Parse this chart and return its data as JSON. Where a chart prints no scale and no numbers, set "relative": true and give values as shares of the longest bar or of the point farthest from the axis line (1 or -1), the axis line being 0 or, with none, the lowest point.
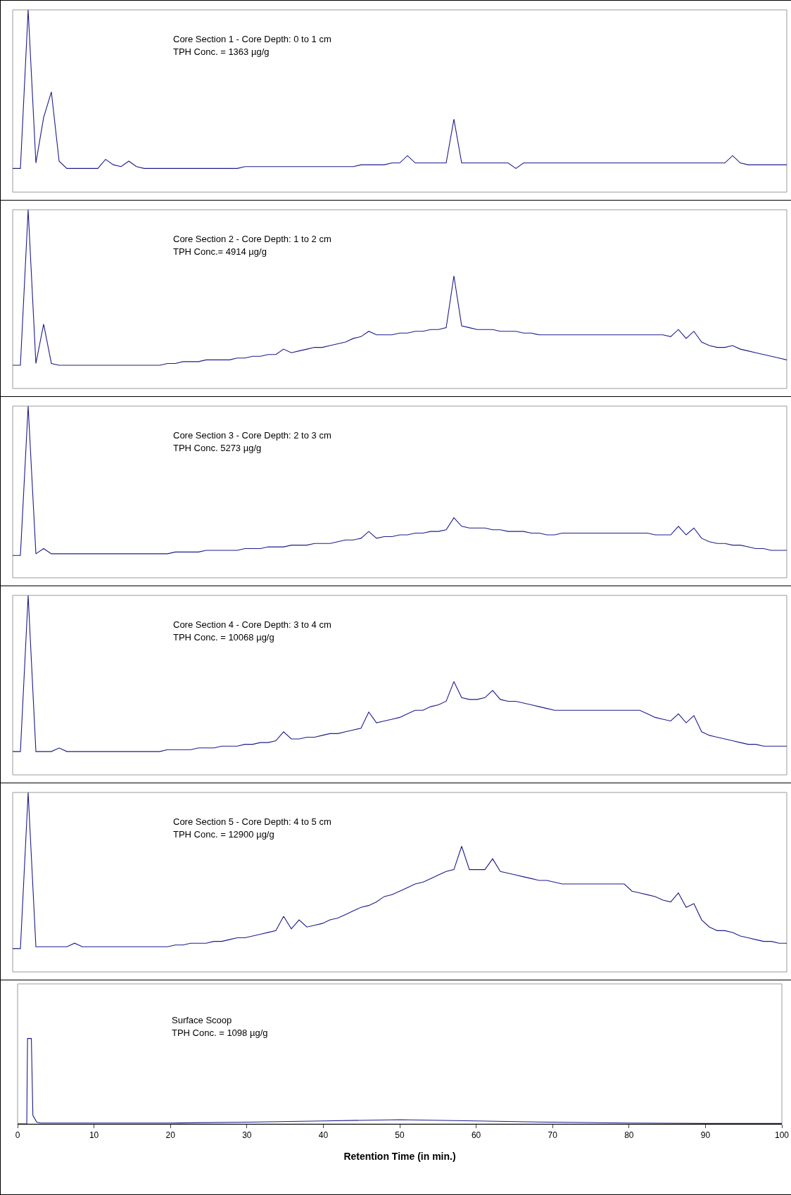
{
  "chart_data": [
    {
      "type": "line",
      "relative": true,
      "color": "#1c1c8c",
      "tick_labels": false,
      "annotations": [
        "Core Section 1 - Core Depth: 0 to 1 cm",
        "TPH Conc. = 1363 µg/g"
      ],
      "categories": [
        null,
        null,
        null,
        null,
        null,
        null,
        null,
        null,
        null,
        null,
        null,
        null,
        null,
        null,
        null,
        null,
        null,
        null,
        null,
        null,
        null,
        null,
        null,
        null,
        null,
        null,
        null,
        null,
        null,
        null,
        null,
        null,
        null,
        null,
        null,
        null,
        null,
        null,
        null,
        null,
        null,
        null,
        null,
        null,
        null,
        null,
        null,
        null,
        null,
        null,
        null,
        null,
        null,
        null,
        null,
        null,
        null,
        null,
        null,
        null,
        null,
        null,
        null,
        null,
        null,
        null,
        null,
        null,
        null,
        null,
        null,
        null,
        null,
        null,
        null,
        null,
        null,
        null,
        null,
        null,
        null,
        null,
        null,
        null,
        null,
        null,
        null,
        null,
        null,
        null,
        null,
        null,
        null,
        null,
        null,
        null,
        null,
        null,
        null,
        null,
        null
      ],
      "values": [
        0.13,
        0.13,
        1,
        0.16,
        0.41,
        0.55,
        0.17,
        0.13,
        0.13,
        0.13,
        0.13,
        0.13,
        0.18,
        0.15,
        0.14,
        0.17,
        0.14,
        0.13,
        0.13,
        0.13,
        0.13,
        0.13,
        0.13,
        0.13,
        0.13,
        0.13,
        0.13,
        0.13,
        0.13,
        0.13,
        0.14,
        0.14,
        0.14,
        0.14,
        0.14,
        0.14,
        0.14,
        0.14,
        0.14,
        0.14,
        0.14,
        0.14,
        0.14,
        0.14,
        0.14,
        0.15,
        0.15,
        0.15,
        0.15,
        0.16,
        0.16,
        0.2,
        0.16,
        0.16,
        0.16,
        0.16,
        0.16,
        0.4,
        0.16,
        0.16,
        0.16,
        0.16,
        0.16,
        0.16,
        0.16,
        0.13,
        0.16,
        0.16,
        0.16,
        0.16,
        0.16,
        0.16,
        0.16,
        0.16,
        0.16,
        0.16,
        0.16,
        0.16,
        0.16,
        0.16,
        0.16,
        0.16,
        0.16,
        0.16,
        0.16,
        0.16,
        0.16,
        0.16,
        0.16,
        0.16,
        0.16,
        0.16,
        0.16,
        0.2,
        0.16,
        0.15,
        0.15,
        0.15,
        0.15,
        0.15,
        0.15
      ]
    },
    {
      "type": "line",
      "relative": true,
      "color": "#1c1c8c",
      "tick_labels": false,
      "annotations": [
        "Core Section 2 - Core Depth: 1 to 2 cm",
        "TPH Conc.= 4914 µg/g"
      ],
      "categories": [
        null,
        null,
        null,
        null,
        null,
        null,
        null,
        null,
        null,
        null,
        null,
        null,
        null,
        null,
        null,
        null,
        null,
        null,
        null,
        null,
        null,
        null,
        null,
        null,
        null,
        null,
        null,
        null,
        null,
        null,
        null,
        null,
        null,
        null,
        null,
        null,
        null,
        null,
        null,
        null,
        null,
        null,
        null,
        null,
        null,
        null,
        null,
        null,
        null,
        null,
        null,
        null,
        null,
        null,
        null,
        null,
        null,
        null,
        null,
        null,
        null,
        null,
        null,
        null,
        null,
        null,
        null,
        null,
        null,
        null,
        null,
        null,
        null,
        null,
        null,
        null,
        null,
        null,
        null,
        null,
        null,
        null,
        null,
        null,
        null,
        null,
        null,
        null,
        null,
        null,
        null,
        null,
        null,
        null,
        null,
        null,
        null,
        null,
        null,
        null,
        null
      ],
      "values": [
        0.13,
        0.13,
        1,
        0.14,
        0.36,
        0.14,
        0.13,
        0.13,
        0.13,
        0.13,
        0.13,
        0.13,
        0.13,
        0.13,
        0.13,
        0.13,
        0.13,
        0.13,
        0.13,
        0.13,
        0.14,
        0.14,
        0.15,
        0.15,
        0.15,
        0.16,
        0.16,
        0.16,
        0.16,
        0.17,
        0.17,
        0.18,
        0.18,
        0.19,
        0.19,
        0.22,
        0.2,
        0.21,
        0.22,
        0.23,
        0.23,
        0.24,
        0.25,
        0.26,
        0.28,
        0.29,
        0.32,
        0.3,
        0.3,
        0.3,
        0.31,
        0.31,
        0.32,
        0.32,
        0.33,
        0.33,
        0.34,
        0.63,
        0.35,
        0.34,
        0.33,
        0.33,
        0.33,
        0.32,
        0.32,
        0.32,
        0.31,
        0.31,
        0.3,
        0.3,
        0.3,
        0.3,
        0.3,
        0.3,
        0.3,
        0.3,
        0.3,
        0.3,
        0.3,
        0.3,
        0.3,
        0.3,
        0.3,
        0.3,
        0.3,
        0.29,
        0.33,
        0.28,
        0.32,
        0.26,
        0.24,
        0.23,
        0.23,
        0.24,
        0.22,
        0.21,
        0.2,
        0.19,
        0.18,
        0.17,
        0.16
      ]
    },
    {
      "type": "line",
      "relative": true,
      "color": "#1c1c8c",
      "tick_labels": false,
      "annotations": [
        "Core Section 3 - Core Depth: 2 to 3 cm",
        "TPH Conc. 5273 µg/g"
      ],
      "categories": [
        null,
        null,
        null,
        null,
        null,
        null,
        null,
        null,
        null,
        null,
        null,
        null,
        null,
        null,
        null,
        null,
        null,
        null,
        null,
        null,
        null,
        null,
        null,
        null,
        null,
        null,
        null,
        null,
        null,
        null,
        null,
        null,
        null,
        null,
        null,
        null,
        null,
        null,
        null,
        null,
        null,
        null,
        null,
        null,
        null,
        null,
        null,
        null,
        null,
        null,
        null,
        null,
        null,
        null,
        null,
        null,
        null,
        null,
        null,
        null,
        null,
        null,
        null,
        null,
        null,
        null,
        null,
        null,
        null,
        null,
        null,
        null,
        null,
        null,
        null,
        null,
        null,
        null,
        null,
        null,
        null,
        null,
        null,
        null,
        null,
        null,
        null,
        null,
        null,
        null,
        null,
        null,
        null,
        null,
        null,
        null,
        null,
        null,
        null,
        null,
        null
      ],
      "values": [
        0.13,
        0.13,
        1,
        0.14,
        0.17,
        0.14,
        0.14,
        0.14,
        0.14,
        0.14,
        0.14,
        0.14,
        0.14,
        0.14,
        0.14,
        0.14,
        0.14,
        0.14,
        0.14,
        0.14,
        0.14,
        0.15,
        0.15,
        0.15,
        0.15,
        0.16,
        0.16,
        0.16,
        0.16,
        0.16,
        0.17,
        0.17,
        0.17,
        0.18,
        0.18,
        0.18,
        0.19,
        0.19,
        0.19,
        0.2,
        0.2,
        0.2,
        0.21,
        0.22,
        0.22,
        0.23,
        0.27,
        0.23,
        0.24,
        0.24,
        0.25,
        0.25,
        0.26,
        0.26,
        0.27,
        0.27,
        0.28,
        0.35,
        0.3,
        0.29,
        0.29,
        0.29,
        0.28,
        0.28,
        0.27,
        0.27,
        0.27,
        0.26,
        0.26,
        0.25,
        0.25,
        0.26,
        0.26,
        0.26,
        0.26,
        0.26,
        0.26,
        0.26,
        0.26,
        0.26,
        0.26,
        0.26,
        0.26,
        0.25,
        0.25,
        0.25,
        0.3,
        0.25,
        0.29,
        0.23,
        0.21,
        0.2,
        0.2,
        0.19,
        0.19,
        0.18,
        0.17,
        0.17,
        0.16,
        0.16,
        0.16
      ]
    },
    {
      "type": "line",
      "relative": true,
      "color": "#1c1c8c",
      "tick_labels": false,
      "annotations": [
        "Core Section 4 - Core Depth: 3 to 4 cm",
        "TPH Conc. = 10068 µg/g"
      ],
      "categories": [
        null,
        null,
        null,
        null,
        null,
        null,
        null,
        null,
        null,
        null,
        null,
        null,
        null,
        null,
        null,
        null,
        null,
        null,
        null,
        null,
        null,
        null,
        null,
        null,
        null,
        null,
        null,
        null,
        null,
        null,
        null,
        null,
        null,
        null,
        null,
        null,
        null,
        null,
        null,
        null,
        null,
        null,
        null,
        null,
        null,
        null,
        null,
        null,
        null,
        null,
        null,
        null,
        null,
        null,
        null,
        null,
        null,
        null,
        null,
        null,
        null,
        null,
        null,
        null,
        null,
        null,
        null,
        null,
        null,
        null,
        null,
        null,
        null,
        null,
        null,
        null,
        null,
        null,
        null,
        null,
        null,
        null,
        null,
        null,
        null,
        null,
        null,
        null,
        null,
        null,
        null,
        null,
        null,
        null,
        null,
        null,
        null,
        null,
        null,
        null,
        null
      ],
      "values": [
        0.13,
        0.13,
        1,
        0.13,
        0.13,
        0.13,
        0.15,
        0.13,
        0.13,
        0.13,
        0.13,
        0.13,
        0.13,
        0.13,
        0.13,
        0.13,
        0.13,
        0.13,
        0.13,
        0.13,
        0.14,
        0.14,
        0.14,
        0.14,
        0.15,
        0.15,
        0.15,
        0.16,
        0.16,
        0.16,
        0.17,
        0.17,
        0.18,
        0.18,
        0.19,
        0.24,
        0.2,
        0.2,
        0.21,
        0.21,
        0.22,
        0.23,
        0.23,
        0.24,
        0.25,
        0.26,
        0.35,
        0.29,
        0.3,
        0.31,
        0.32,
        0.34,
        0.36,
        0.36,
        0.38,
        0.39,
        0.41,
        0.52,
        0.43,
        0.42,
        0.42,
        0.43,
        0.47,
        0.42,
        0.41,
        0.41,
        0.4,
        0.39,
        0.38,
        0.37,
        0.36,
        0.36,
        0.36,
        0.36,
        0.36,
        0.36,
        0.36,
        0.36,
        0.36,
        0.36,
        0.36,
        0.36,
        0.34,
        0.32,
        0.31,
        0.3,
        0.34,
        0.29,
        0.33,
        0.24,
        0.22,
        0.21,
        0.2,
        0.19,
        0.18,
        0.17,
        0.17,
        0.16,
        0.16,
        0.16,
        0.16
      ]
    },
    {
      "type": "line",
      "relative": true,
      "color": "#1c1c8c",
      "tick_labels": false,
      "annotations": [
        "Core Section 5 - Core Depth: 4 to 5 cm",
        "TPH Conc. = 12900 µg/g"
      ],
      "categories": [
        null,
        null,
        null,
        null,
        null,
        null,
        null,
        null,
        null,
        null,
        null,
        null,
        null,
        null,
        null,
        null,
        null,
        null,
        null,
        null,
        null,
        null,
        null,
        null,
        null,
        null,
        null,
        null,
        null,
        null,
        null,
        null,
        null,
        null,
        null,
        null,
        null,
        null,
        null,
        null,
        null,
        null,
        null,
        null,
        null,
        null,
        null,
        null,
        null,
        null,
        null,
        null,
        null,
        null,
        null,
        null,
        null,
        null,
        null,
        null,
        null,
        null,
        null,
        null,
        null,
        null,
        null,
        null,
        null,
        null,
        null,
        null,
        null,
        null,
        null,
        null,
        null,
        null,
        null,
        null,
        null,
        null,
        null,
        null,
        null,
        null,
        null,
        null,
        null,
        null,
        null,
        null,
        null,
        null,
        null,
        null,
        null,
        null,
        null,
        null,
        null
      ],
      "values": [
        0.13,
        0.13,
        1,
        0.14,
        0.14,
        0.14,
        0.14,
        0.14,
        0.16,
        0.14,
        0.14,
        0.14,
        0.14,
        0.14,
        0.14,
        0.14,
        0.14,
        0.14,
        0.14,
        0.14,
        0.14,
        0.15,
        0.15,
        0.16,
        0.16,
        0.16,
        0.17,
        0.17,
        0.18,
        0.19,
        0.19,
        0.2,
        0.21,
        0.22,
        0.23,
        0.31,
        0.24,
        0.29,
        0.25,
        0.26,
        0.27,
        0.29,
        0.3,
        0.32,
        0.34,
        0.36,
        0.37,
        0.39,
        0.42,
        0.43,
        0.45,
        0.47,
        0.49,
        0.5,
        0.52,
        0.54,
        0.56,
        0.57,
        0.7,
        0.57,
        0.57,
        0.57,
        0.63,
        0.56,
        0.55,
        0.54,
        0.53,
        0.52,
        0.51,
        0.51,
        0.5,
        0.49,
        0.49,
        0.49,
        0.49,
        0.49,
        0.49,
        0.49,
        0.49,
        0.49,
        0.45,
        0.44,
        0.43,
        0.42,
        0.4,
        0.39,
        0.44,
        0.36,
        0.38,
        0.29,
        0.25,
        0.23,
        0.23,
        0.22,
        0.2,
        0.19,
        0.18,
        0.17,
        0.17,
        0.16,
        0.16
      ]
    },
    {
      "type": "line",
      "relative": true,
      "color": "#1c1c8c",
      "tick_labels": "x",
      "xlim": [
        0,
        100
      ],
      "xticks": [
        0,
        10,
        20,
        30,
        40,
        50,
        60,
        70,
        80,
        90,
        100
      ],
      "xlabel": "Retention Time (in min.)",
      "annotations": [
        "Surface Scoop",
        "TPH Conc. = 1098 µg/g"
      ],
      "x": [
        0,
        1.2,
        1.3,
        1.8,
        2.0,
        2.5,
        3,
        20,
        30,
        40,
        50,
        60,
        70,
        80,
        90,
        100
      ],
      "values": [
        0,
        0,
        1,
        1,
        0.1,
        0.02,
        0.01,
        0.01,
        0.02,
        0.035,
        0.05,
        0.035,
        0.02,
        0.01,
        0.005,
        0.005
      ]
    }
  ]
}
